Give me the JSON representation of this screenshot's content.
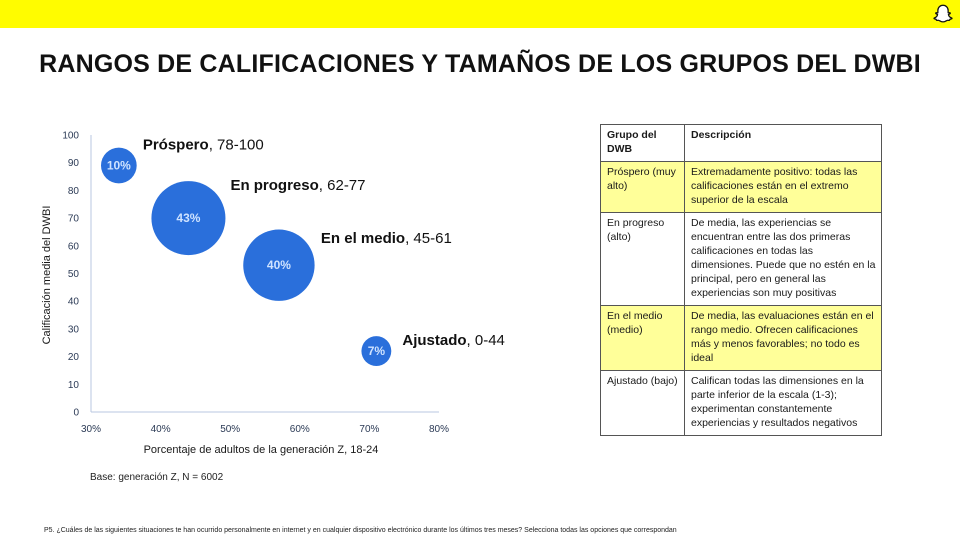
{
  "title": "RANGOS DE CALIFICACIONES Y TAMAÑOS DE LOS GRUPOS DEL DWBI",
  "brand": {
    "accent": "#FFFC00",
    "logo": "snapchat-ghost-icon"
  },
  "chart_data": {
    "type": "scatter",
    "xlabel": "Porcentaje de adultos de la generación Z, 18-24",
    "ylabel": "Calificación media del DWBI",
    "xlim": [
      30,
      80
    ],
    "ylim": [
      0,
      100
    ],
    "x_ticks": [
      "30%",
      "40%",
      "50%",
      "60%",
      "70%",
      "80%"
    ],
    "y_ticks": [
      "0",
      "10",
      "20",
      "30",
      "40",
      "50",
      "60",
      "70",
      "80",
      "90",
      "100"
    ],
    "bubble_color": "#2A6FDB",
    "points": [
      {
        "name": "Próspero",
        "range": ", 78-100",
        "x": 34,
        "y": 89,
        "size": 10,
        "label": "10%"
      },
      {
        "name": "En progreso",
        "range": ", 62-77",
        "x": 44,
        "y": 70,
        "size": 43,
        "label": "43%"
      },
      {
        "name": "En el medio",
        "range": ", 45-61",
        "x": 57,
        "y": 53,
        "size": 40,
        "label": "40%"
      },
      {
        "name": "Ajustado",
        "range": ", 0-44",
        "x": 71,
        "y": 22,
        "size": 7,
        "label": "7%"
      }
    ]
  },
  "base_note": "Base: generación Z, N = 6002",
  "table": {
    "headers": [
      "Grupo del DWB",
      "Descripción"
    ],
    "highlight_color": "#FFFF99",
    "rows": [
      {
        "group": "Próspero (muy alto)",
        "desc": "Extremadamente positivo: todas las calificaciones están en el extremo superior de la escala"
      },
      {
        "group": "En progreso (alto)",
        "desc": "De media, las experiencias se encuentran entre las dos primeras calificaciones en todas las dimensiones. Puede que no estén en la principal, pero en general las experiencias son muy positivas"
      },
      {
        "group": "En el medio (medio)",
        "desc": "De media, las evaluaciones están en el rango medio. Ofrecen calificaciones más y menos favorables; no todo es ideal"
      },
      {
        "group": "Ajustado (bajo)",
        "desc": "Califican todas las dimensiones en la parte inferior de la escala (1-3); experimentan constantemente experiencias y resultados negativos"
      }
    ]
  },
  "footnote": "P5. ¿Cuáles de las siguientes situaciones te han ocurrido personalmente en internet y en cualquier dispositivo electrónico durante los últimos tres meses? Selecciona todas las opciones que correspondan"
}
